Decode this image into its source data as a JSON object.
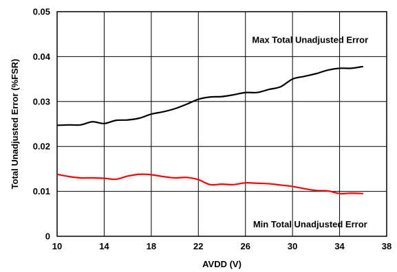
{
  "chart_data": {
    "type": "line",
    "xlabel": "AVDD (V)",
    "ylabel": "Total Unadjusted Error (%FSR)",
    "xlim": [
      10,
      38
    ],
    "ylim": [
      0,
      0.05
    ],
    "xticks": [
      10,
      14,
      18,
      22,
      26,
      30,
      34,
      38
    ],
    "yticks": [
      0,
      0.01,
      0.02,
      0.03,
      0.04,
      0.05
    ],
    "xtick_labels": [
      "10",
      "14",
      "18",
      "22",
      "26",
      "30",
      "34",
      "38"
    ],
    "ytick_labels": [
      "0",
      "0.01",
      "0.02",
      "0.03",
      "0.04",
      "0.05"
    ],
    "grid": true,
    "series": [
      {
        "color": "#000000",
        "x": [
          10,
          11,
          12,
          13,
          14,
          15,
          16,
          17,
          18,
          19,
          20,
          21,
          22,
          23,
          24,
          25,
          26,
          27,
          28,
          29,
          30,
          31,
          32,
          33,
          34,
          35,
          36
        ],
        "y": [
          0.0247,
          0.0248,
          0.0248,
          0.0255,
          0.0251,
          0.0258,
          0.0259,
          0.0263,
          0.0272,
          0.0277,
          0.0284,
          0.0294,
          0.0305,
          0.031,
          0.0311,
          0.0315,
          0.032,
          0.032,
          0.0327,
          0.0333,
          0.035,
          0.0356,
          0.0362,
          0.037,
          0.0374,
          0.0374,
          0.0378
        ]
      },
      {
        "color": "#ff0000",
        "x": [
          10,
          11,
          12,
          13,
          14,
          15,
          16,
          17,
          18,
          19,
          20,
          21,
          22,
          23,
          24,
          25,
          26,
          27,
          28,
          29,
          30,
          31,
          32,
          33,
          34,
          35,
          36
        ],
        "y": [
          0.0138,
          0.0133,
          0.013,
          0.013,
          0.0129,
          0.0127,
          0.0134,
          0.0138,
          0.0137,
          0.0133,
          0.013,
          0.0131,
          0.0126,
          0.0115,
          0.0116,
          0.0115,
          0.0119,
          0.0118,
          0.0117,
          0.0114,
          0.0111,
          0.0106,
          0.0102,
          0.0101,
          0.0095,
          0.0096,
          0.0095
        ]
      }
    ],
    "annotations": [
      {
        "text": "Max Total Unadjusted Error",
        "x": 31.5,
        "y": 0.0437
      },
      {
        "text": "Min Total Unadjusted Error",
        "x": 31.5,
        "y": 0.0027
      }
    ]
  }
}
